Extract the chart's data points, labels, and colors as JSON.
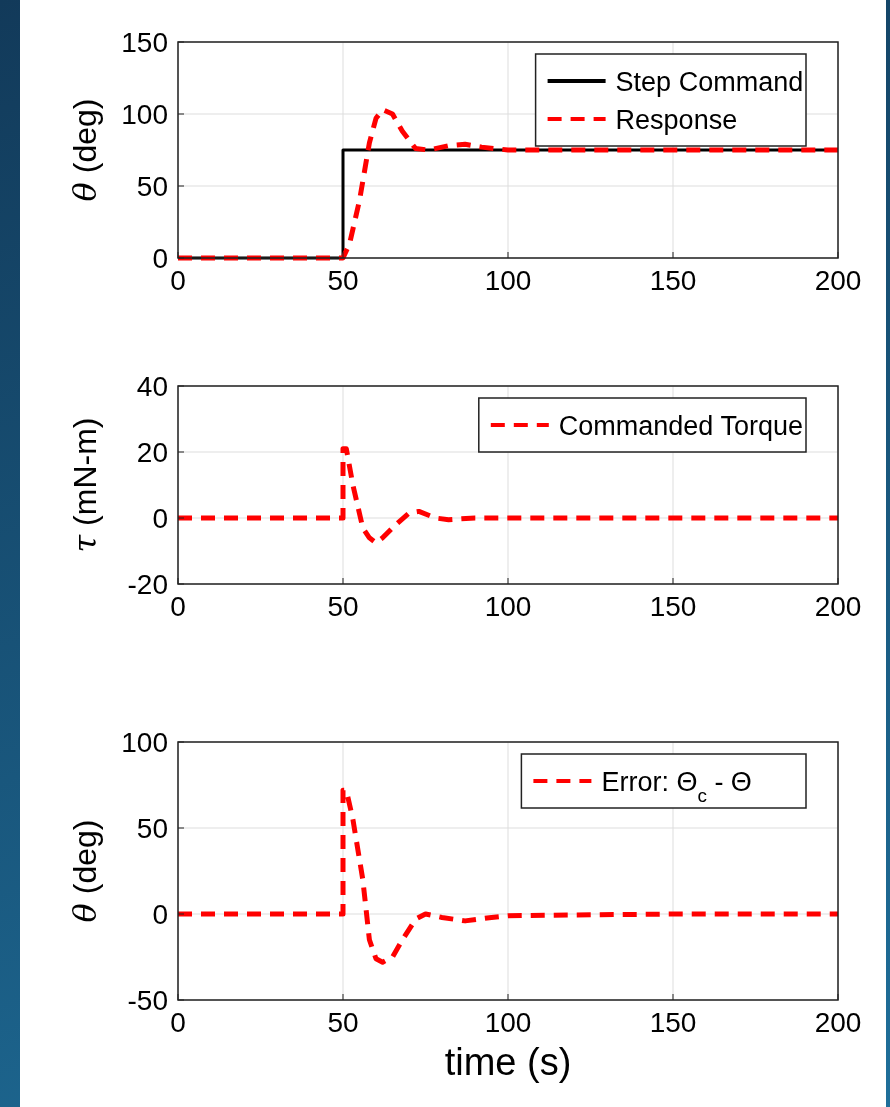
{
  "chart_data": [
    {
      "type": "line",
      "ylabel": "θ (deg)",
      "xlim": [
        0,
        200
      ],
      "ylim": [
        0,
        150
      ],
      "xticks": [
        0,
        50,
        100,
        150,
        200
      ],
      "yticks": [
        0,
        50,
        100,
        150
      ],
      "grid": true,
      "legend": "top right",
      "series": [
        {
          "name": "Step Command",
          "color": "#000000",
          "line_style": "solid",
          "x": [
            0,
            50,
            50,
            200
          ],
          "values": [
            0,
            0,
            75,
            75
          ]
        },
        {
          "name": "Response",
          "color": "#ff0000",
          "line_style": "dashed",
          "x": [
            0,
            50,
            52,
            55,
            58,
            60,
            62,
            65,
            68,
            72,
            76,
            82,
            87,
            92,
            100,
            200
          ],
          "values": [
            0,
            0,
            10,
            40,
            80,
            97,
            103,
            100,
            88,
            76,
            75,
            78,
            79,
            77,
            75,
            75
          ]
        }
      ]
    },
    {
      "type": "line",
      "ylabel": "τ (mN-m)",
      "xlim": [
        0,
        200
      ],
      "ylim": [
        -20,
        40
      ],
      "xticks": [
        0,
        50,
        100,
        150,
        200
      ],
      "yticks": [
        -20,
        0,
        20,
        40
      ],
      "grid": true,
      "legend": "top right",
      "series": [
        {
          "name": "Commanded Torque",
          "color": "#ff0000",
          "line_style": "dashed",
          "x": [
            0,
            50,
            50,
            51,
            53,
            56,
            58,
            60,
            62,
            66,
            70,
            73,
            78,
            82,
            90,
            200
          ],
          "values": [
            0,
            0,
            21,
            21,
            10,
            -3,
            -6,
            -7.5,
            -6,
            -2,
            1.5,
            2,
            0,
            -0.5,
            0,
            0
          ]
        }
      ]
    },
    {
      "type": "line",
      "ylabel": "θ (deg)",
      "xlabel": "time (s)",
      "xlim": [
        0,
        200
      ],
      "ylim": [
        -50,
        100
      ],
      "xticks": [
        0,
        50,
        100,
        150,
        200
      ],
      "yticks": [
        -50,
        0,
        50,
        100
      ],
      "grid": true,
      "legend": "top right",
      "series": [
        {
          "name": "Error: Θ$_{c}$ - Θ",
          "color": "#ff0000",
          "line_style": "dashed",
          "x": [
            0,
            50,
            50,
            51,
            53,
            56,
            58,
            60,
            62,
            65,
            68,
            72,
            75,
            80,
            87,
            95,
            100,
            150,
            200
          ],
          "values": [
            0,
            0,
            72,
            72,
            55,
            20,
            -15,
            -26,
            -28,
            -25,
            -15,
            -3,
            0,
            -2,
            -4,
            -2,
            -1,
            0,
            0
          ]
        }
      ]
    }
  ]
}
